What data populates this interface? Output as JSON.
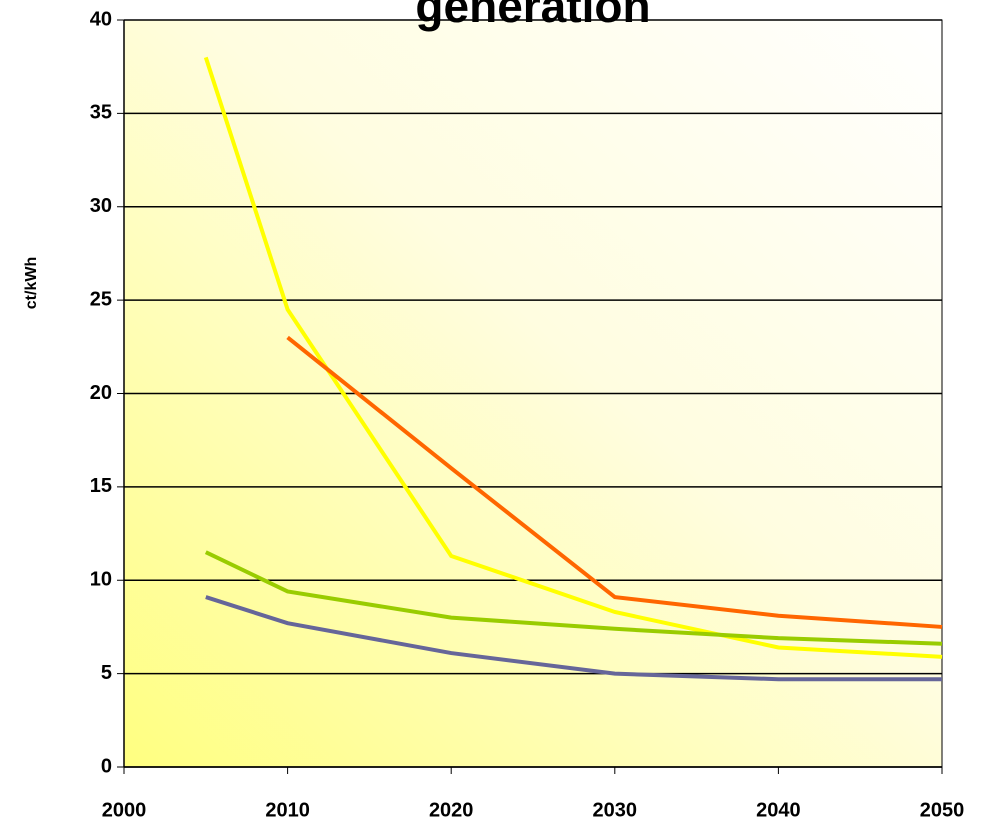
{
  "chart_data": {
    "type": "line",
    "title": "generation",
    "ylabel": "ct/kWh",
    "x": [
      2005,
      2010,
      2020,
      2030,
      2040,
      2050
    ],
    "series": [
      {
        "color": "#ffff00",
        "values": [
          38,
          24.5,
          11.3,
          8.3,
          6.4,
          5.9
        ]
      },
      {
        "color": "#ff6600",
        "values": [
          null,
          23,
          16,
          9.1,
          8.1,
          7.5
        ]
      },
      {
        "color": "#99cc00",
        "values": [
          11.5,
          9.4,
          8.0,
          7.4,
          6.9,
          6.6
        ]
      },
      {
        "color": "#666699",
        "values": [
          9.1,
          7.7,
          6.1,
          5.0,
          4.7,
          4.7
        ]
      }
    ],
    "xlim": [
      2000,
      2050
    ],
    "xticks": [
      2000,
      2010,
      2020,
      2030,
      2040,
      2050
    ],
    "ylim": [
      0,
      40
    ],
    "yticks": [
      0,
      5,
      10,
      15,
      20,
      25,
      30,
      35,
      40
    ],
    "grid": true
  }
}
